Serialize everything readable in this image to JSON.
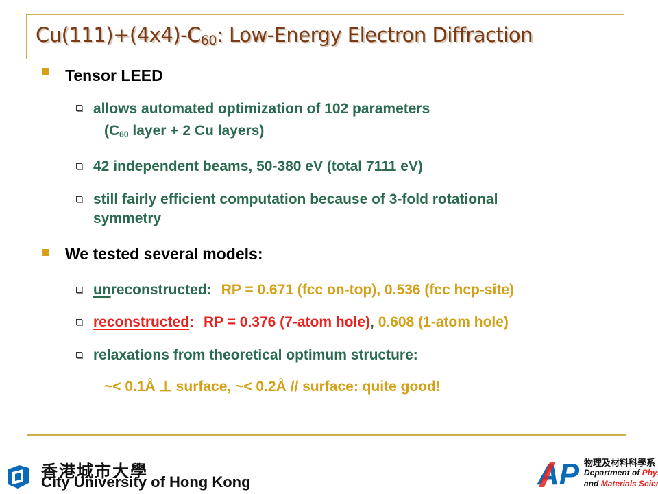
{
  "slide": {
    "title_main": "Cu(111)+(4x4)-C",
    "title_sub": "60",
    "title_rest": ":  Low-Energy Electron Diffraction",
    "sections": [
      {
        "heading": "Tensor LEED",
        "items": [
          {
            "line1": "allows automated optimization of 102 parameters",
            "line2_pre": "(C",
            "line2_sub": "60",
            "line2_post": " layer + 2 Cu layers)"
          },
          {
            "text": "42 independent beams, 50-380 eV (total 7111 eV)"
          },
          {
            "line1": "still fairly efficient computation because of 3-fold rotational",
            "line2": "symmetry"
          }
        ]
      },
      {
        "heading": "We tested several models:",
        "items": [
          {
            "underlined": "un",
            "label_rest": "reconstructed:",
            "value": "RP = 0.671 (fcc on-top), 0.536 (fcc hcp-site)"
          },
          {
            "label": "reconstructed",
            "colon": ":",
            "value_red": "RP = 0.376 (7-atom hole)",
            "separator": ",",
            "value_gold": "0.608 (1-atom hole)"
          },
          {
            "text": "relaxations from theoretical optimum structure:",
            "detail": "~< 0.1Å ⊥ surface, ~< 0.2Å // surface:  quite good!"
          }
        ]
      }
    ]
  },
  "footer": {
    "cityu_chinese": "香港城市大學",
    "cityu_english": "City University of Hong Kong",
    "dept_chinese": "物理及材料科學系",
    "dept_english_line1_pre": "Department of ",
    "dept_english_line1_red": "Physics",
    "dept_english_line2_pre": "and ",
    "dept_english_line2_red": "Materials Science",
    "ap_logo_text": "AP"
  },
  "colors": {
    "title": "#7a3a13",
    "bullet_gold": "#d4a017",
    "text_green": "#2a6b4f",
    "text_gold": "#d4a017",
    "text_red": "#e8231f",
    "frame": "#c8b050"
  }
}
